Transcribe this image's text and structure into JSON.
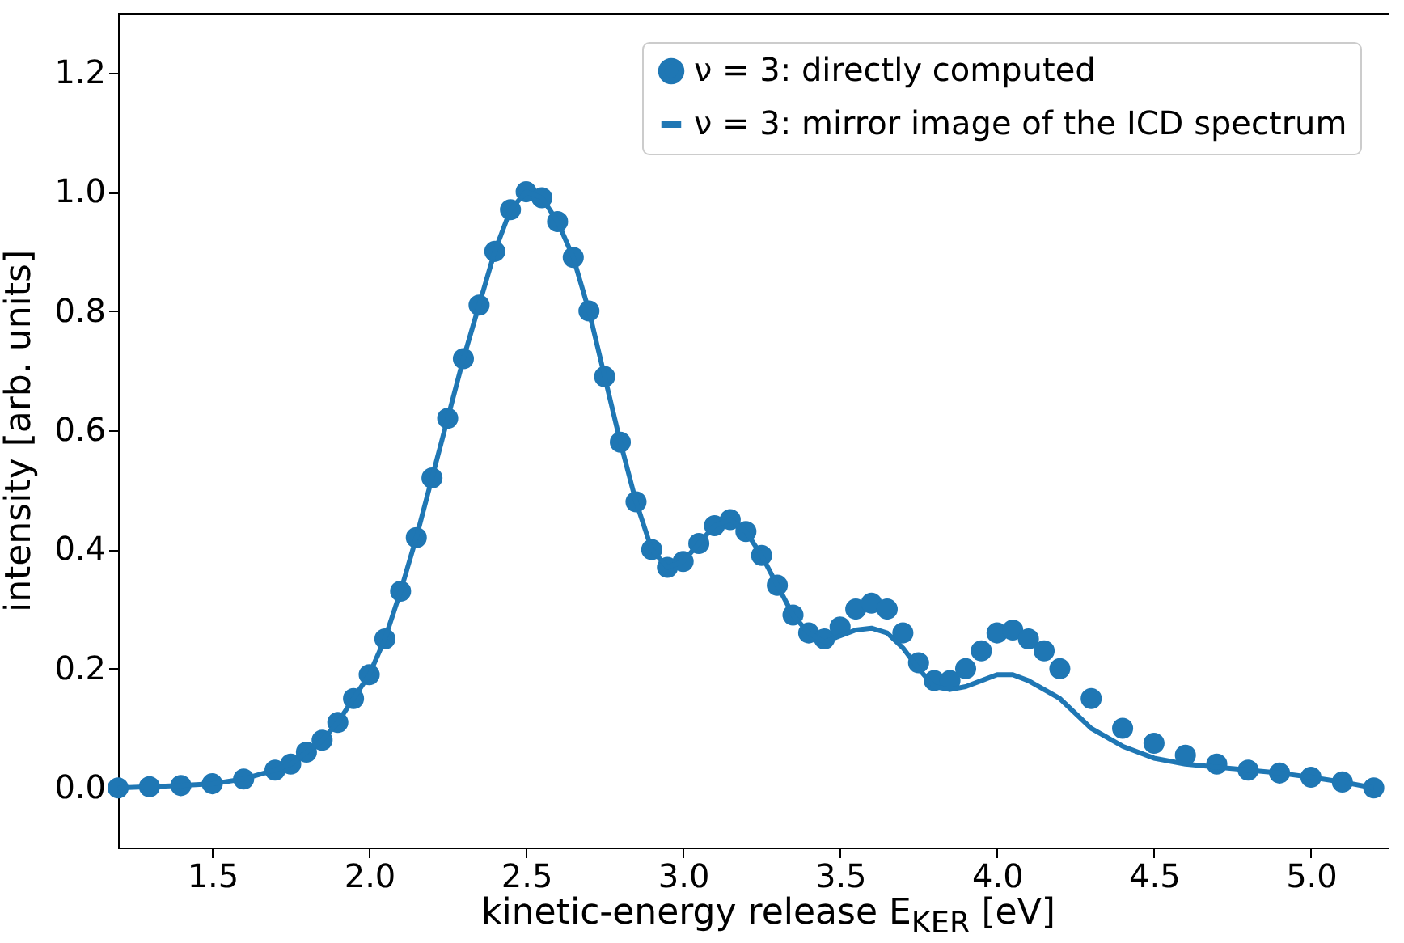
{
  "chart_data": {
    "type": "scatter",
    "xlabel": "kinetic-energy release E$_{KER}$ [eV]",
    "ylabel": "intensity [arb. units]",
    "xlim": [
      1.2,
      5.25
    ],
    "ylim": [
      -0.1,
      1.3
    ],
    "xticks": [
      {
        "value": 1.5,
        "label": "1.5"
      },
      {
        "value": 2,
        "label": "2.0"
      },
      {
        "value": 2.5,
        "label": "2.5"
      },
      {
        "value": 3,
        "label": "3.0"
      },
      {
        "value": 3.5,
        "label": "3.5"
      },
      {
        "value": 4,
        "label": "4.0"
      },
      {
        "value": 4.5,
        "label": "4.5"
      },
      {
        "value": 5,
        "label": "5.0"
      }
    ],
    "yticks": [
      {
        "value": 0,
        "label": "0.0"
      },
      {
        "value": 0.2,
        "label": "0.2"
      },
      {
        "value": 0.4,
        "label": "0.4"
      },
      {
        "value": 0.6,
        "label": "0.6"
      },
      {
        "value": 0.8,
        "label": "0.8"
      },
      {
        "value": 1,
        "label": "1.0"
      },
      {
        "value": 1.2,
        "label": "1.2"
      }
    ],
    "grid": false,
    "legend": "top right",
    "series": [
      {
        "name": "ν = 3: directly computed",
        "marker": "circle",
        "color": "#1f77b4",
        "x": [
          1.2,
          1.3,
          1.4,
          1.5,
          1.6,
          1.7,
          1.75,
          1.8,
          1.85,
          1.9,
          1.95,
          2.0,
          2.05,
          2.1,
          2.15,
          2.2,
          2.25,
          2.3,
          2.35,
          2.4,
          2.45,
          2.5,
          2.55,
          2.6,
          2.65,
          2.7,
          2.75,
          2.8,
          2.85,
          2.9,
          2.95,
          3.0,
          3.05,
          3.1,
          3.15,
          3.2,
          3.25,
          3.3,
          3.35,
          3.4,
          3.45,
          3.5,
          3.55,
          3.6,
          3.65,
          3.7,
          3.75,
          3.8,
          3.85,
          3.9,
          3.95,
          4.0,
          4.05,
          4.1,
          4.15,
          4.2,
          4.3,
          4.4,
          4.5,
          4.6,
          4.7,
          4.8,
          4.9,
          5.0,
          5.1,
          5.2
        ],
        "values": [
          0.0,
          0.002,
          0.004,
          0.007,
          0.015,
          0.03,
          0.04,
          0.06,
          0.08,
          0.11,
          0.15,
          0.19,
          0.25,
          0.33,
          0.42,
          0.52,
          0.62,
          0.72,
          0.81,
          0.9,
          0.97,
          1.0,
          0.99,
          0.95,
          0.89,
          0.8,
          0.69,
          0.58,
          0.48,
          0.4,
          0.37,
          0.38,
          0.41,
          0.44,
          0.45,
          0.43,
          0.39,
          0.34,
          0.29,
          0.26,
          0.25,
          0.27,
          0.3,
          0.31,
          0.3,
          0.26,
          0.21,
          0.18,
          0.18,
          0.2,
          0.23,
          0.26,
          0.265,
          0.25,
          0.23,
          0.2,
          0.15,
          0.1,
          0.075,
          0.055,
          0.04,
          0.03,
          0.025,
          0.018,
          0.01,
          0.0
        ]
      },
      {
        "name": "ν = 3: mirror image of the ICD spectrum",
        "type": "line",
        "line_style": "solid",
        "color": "#1f77b4",
        "x": [
          1.2,
          1.3,
          1.4,
          1.5,
          1.6,
          1.7,
          1.75,
          1.8,
          1.85,
          1.9,
          1.95,
          2.0,
          2.05,
          2.1,
          2.15,
          2.2,
          2.25,
          2.3,
          2.35,
          2.4,
          2.45,
          2.5,
          2.55,
          2.6,
          2.65,
          2.7,
          2.75,
          2.8,
          2.85,
          2.9,
          2.95,
          3.0,
          3.05,
          3.1,
          3.15,
          3.2,
          3.25,
          3.3,
          3.35,
          3.4,
          3.45,
          3.5,
          3.55,
          3.6,
          3.65,
          3.7,
          3.75,
          3.8,
          3.85,
          3.9,
          3.95,
          4.0,
          4.05,
          4.1,
          4.15,
          4.2,
          4.3,
          4.4,
          4.5,
          4.6,
          4.7,
          4.8,
          4.9,
          5.0,
          5.1,
          5.2
        ],
        "values": [
          0.0,
          0.002,
          0.004,
          0.007,
          0.015,
          0.03,
          0.04,
          0.06,
          0.08,
          0.11,
          0.15,
          0.19,
          0.25,
          0.33,
          0.42,
          0.52,
          0.62,
          0.72,
          0.81,
          0.9,
          0.97,
          1.0,
          0.99,
          0.95,
          0.89,
          0.8,
          0.69,
          0.58,
          0.48,
          0.4,
          0.37,
          0.38,
          0.41,
          0.44,
          0.45,
          0.43,
          0.39,
          0.34,
          0.29,
          0.26,
          0.245,
          0.255,
          0.265,
          0.268,
          0.26,
          0.235,
          0.2,
          0.17,
          0.165,
          0.17,
          0.18,
          0.19,
          0.19,
          0.18,
          0.165,
          0.15,
          0.1,
          0.07,
          0.05,
          0.04,
          0.035,
          0.03,
          0.025,
          0.018,
          0.01,
          0.0
        ]
      }
    ]
  }
}
